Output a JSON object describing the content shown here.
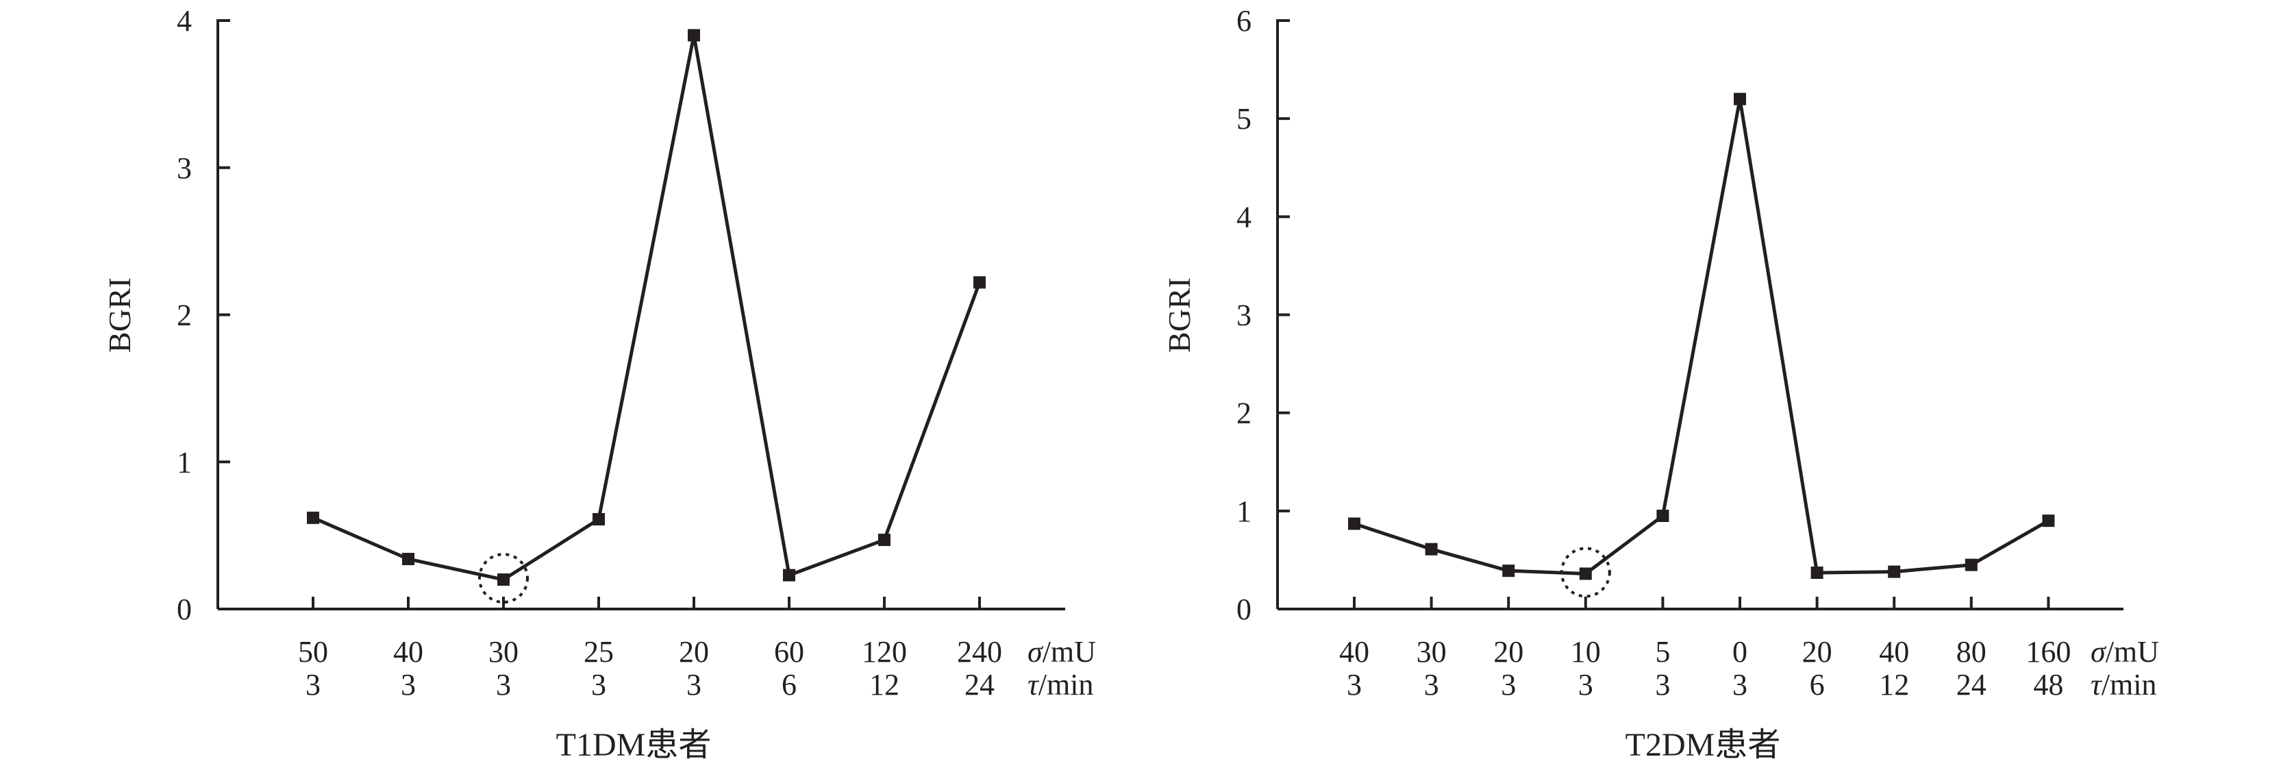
{
  "chart_data": [
    {
      "type": "line",
      "xlabel": "T1DM患者",
      "ylabel": "BGRI",
      "ylim": [
        0,
        4
      ],
      "yticks": [
        "0",
        "1",
        "2",
        "3",
        "4"
      ],
      "row_labels": [
        "σ/mU",
        "τ/min"
      ],
      "categories_sigma": [
        "50",
        "40",
        "30",
        "25",
        "20",
        "60",
        "120",
        "240"
      ],
      "categories_tau": [
        "3",
        "3",
        "3",
        "3",
        "3",
        "6",
        "12",
        "24"
      ],
      "values": [
        0.62,
        0.34,
        0.2,
        0.61,
        3.9,
        0.23,
        0.47,
        2.22
      ],
      "highlight_index": 2,
      "grid": false
    },
    {
      "type": "line",
      "xlabel": "T2DM患者",
      "ylabel": "BGRI",
      "ylim": [
        0,
        6
      ],
      "yticks": [
        "0",
        "1",
        "2",
        "3",
        "4",
        "5",
        "6"
      ],
      "row_labels": [
        "σ/mU",
        "τ/min"
      ],
      "categories_sigma": [
        "40",
        "30",
        "20",
        "10",
        "5",
        "0",
        "20",
        "40",
        "80",
        "160"
      ],
      "categories_tau": [
        "3",
        "3",
        "3",
        "3",
        "3",
        "3",
        "6",
        "12",
        "24",
        "48"
      ],
      "values": [
        0.87,
        0.61,
        0.39,
        0.36,
        0.95,
        5.2,
        0.37,
        0.38,
        0.45,
        0.9
      ],
      "highlight_index": 3,
      "grid": false
    }
  ]
}
